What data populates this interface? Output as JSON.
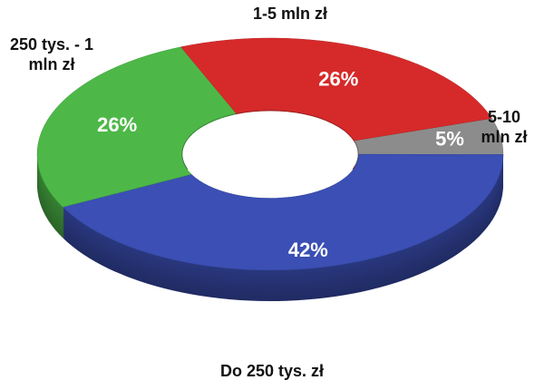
{
  "chart_data": {
    "type": "donut3d",
    "categories": [
      "5-10 mln zł",
      "Do 250 tys. zł",
      "250 tys. - 1 mln zł",
      "1-5 mln zł"
    ],
    "values": [
      5,
      42,
      26,
      26
    ],
    "value_labels": [
      "5%",
      "42%",
      "26%",
      "26%"
    ],
    "colors": [
      "#8c8c8c",
      "#3b4fb4",
      "#4db848",
      "#d62a2a"
    ]
  }
}
